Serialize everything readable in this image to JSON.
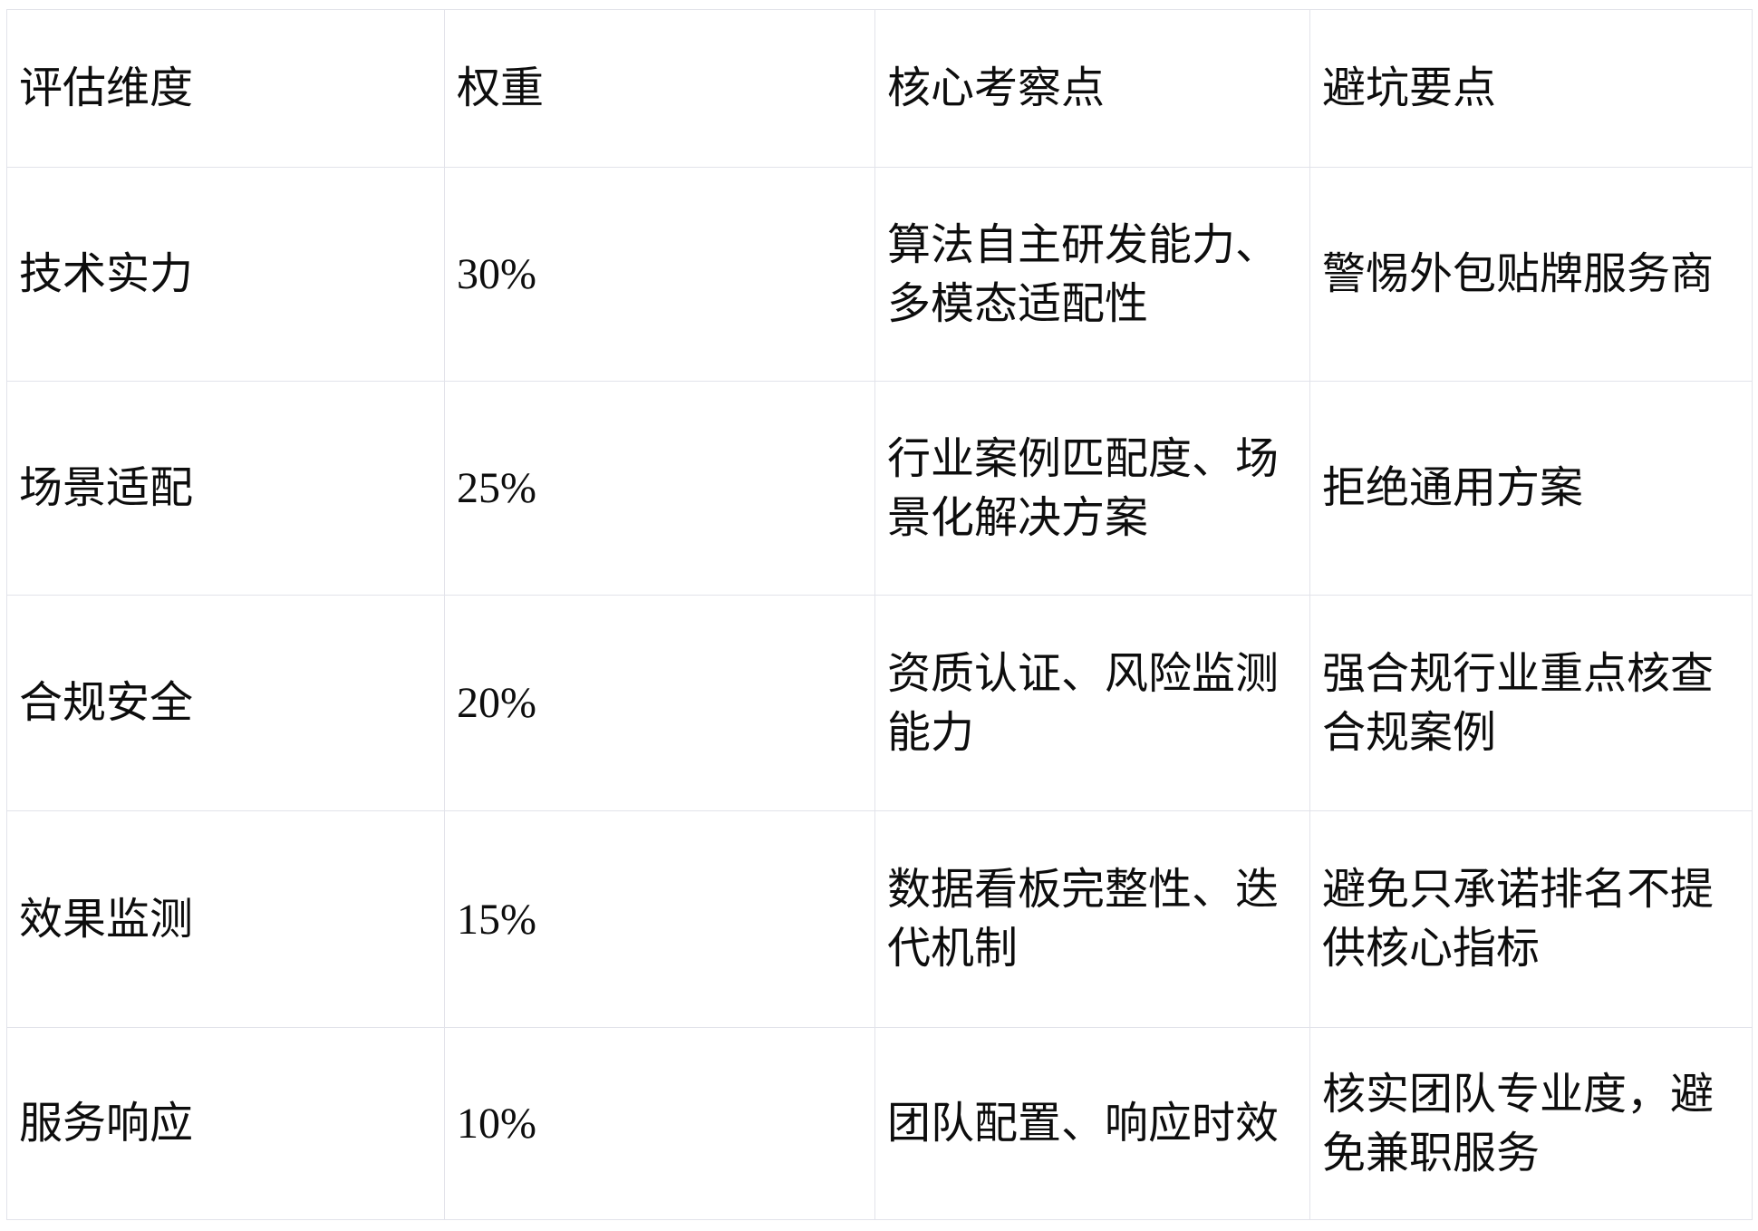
{
  "table": {
    "headers": {
      "dimension": "评估维度",
      "weight": "权重",
      "core_points": "核心考察点",
      "pitfalls": "避坑要点"
    },
    "rows": [
      {
        "dimension": "技术实力",
        "weight": "30%",
        "core_points": "算法自主研发能力、\n多模态适配性",
        "pitfalls": "警惕外包贴牌服务商"
      },
      {
        "dimension": "场景适配",
        "weight": "25%",
        "core_points": "行业案例匹配度、场\n景化解决方案",
        "pitfalls": "拒绝通用方案"
      },
      {
        "dimension": "合规安全",
        "weight": "20%",
        "core_points": "资质认证、风险监测\n能力",
        "pitfalls": "强合规行业重点核查\n合规案例"
      },
      {
        "dimension": "效果监测",
        "weight": "15%",
        "core_points": "数据看板完整性、迭\n代机制",
        "pitfalls": "避免只承诺排名不提\n供核心指标"
      },
      {
        "dimension": "服务响应",
        "weight": "10%",
        "core_points": "团队配置、响应时效",
        "pitfalls": "核实团队专业度，避\n免兼职服务"
      }
    ],
    "colors": {
      "border": "#e2e3ea",
      "text": "#0d0d0d",
      "background": "#ffffff"
    }
  }
}
